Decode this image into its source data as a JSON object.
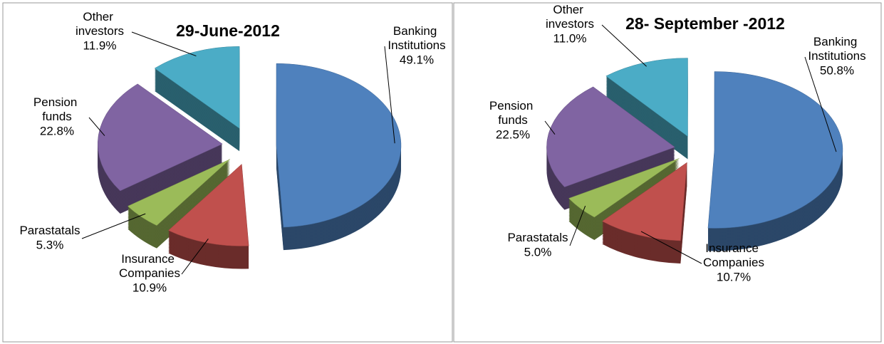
{
  "chart_data": [
    {
      "type": "pie",
      "title": "29-June-2012",
      "categories": [
        "Banking Institutions",
        "Insurance Companies",
        "Parastatals",
        "Pension funds",
        "Other investors"
      ],
      "values": [
        49.1,
        10.9,
        5.3,
        22.8,
        11.9
      ],
      "value_labels": [
        "49.1%",
        "10.9%",
        "5.3%",
        "22.8%",
        "11.9%"
      ],
      "colors": [
        "#4f81bd",
        "#c0504d",
        "#9bbb59",
        "#8064a2",
        "#4bacc6"
      ]
    },
    {
      "type": "pie",
      "title": "28- September -2012",
      "categories": [
        "Banking Institutions",
        "Insurance Companies",
        "Parastatals",
        "Pension funds",
        "Other investors"
      ],
      "values": [
        50.8,
        10.7,
        5.0,
        22.5,
        11.0
      ],
      "value_labels": [
        "50.8%",
        "10.7%",
        "5.0%",
        "22.5%",
        "11.0%"
      ],
      "colors": [
        "#4f81bd",
        "#c0504d",
        "#9bbb59",
        "#8064a2",
        "#4bacc6"
      ]
    }
  ]
}
